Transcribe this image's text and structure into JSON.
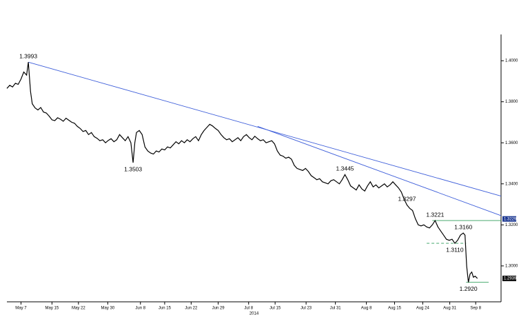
{
  "chart_data": {
    "type": "line",
    "color": "#000000",
    "x": [
      -2.5,
      -2,
      -1.5,
      -1,
      -0.5,
      0,
      0.5,
      1,
      1.3,
      1.7,
      2,
      2.5,
      3,
      3.5,
      4,
      4.5,
      5,
      5.5,
      6,
      6.5,
      7,
      7.5,
      8,
      8.5,
      9,
      9.5,
      10,
      10.5,
      11,
      11.5,
      12,
      12.5,
      13,
      13.5,
      14,
      14.5,
      15,
      15.5,
      16,
      16.5,
      17,
      17.5,
      18,
      18.5,
      19,
      19.5,
      19.9,
      20.2,
      20.5,
      21,
      21.5,
      22,
      22.5,
      23,
      23.5,
      24,
      24.5,
      25,
      25.5,
      26,
      26.5,
      27,
      27.5,
      28,
      28.5,
      29,
      29.5,
      30,
      30.5,
      31,
      31.5,
      32,
      32.5,
      33,
      33.5,
      34,
      34.5,
      35,
      35.5,
      36,
      36.5,
      37,
      37.5,
      38,
      38.5,
      39,
      39.5,
      40,
      40.5,
      41,
      41.5,
      42,
      42.5,
      43,
      43.5,
      44,
      44.5,
      45,
      45.5,
      46,
      46.5,
      47,
      47.5,
      48,
      48.5,
      49,
      49.5,
      50,
      50.5,
      51,
      51.5,
      52,
      52.5,
      53,
      53.5,
      54,
      54.5,
      55,
      55.5,
      56,
      56.5,
      57,
      57.5,
      58,
      58.5,
      59,
      59.5,
      60,
      60.5,
      61,
      61.5,
      62,
      62.5,
      63,
      63.5,
      64,
      64.5,
      65,
      65.5,
      66,
      66.5,
      67,
      67.5,
      68,
      68.5,
      69,
      69.5,
      70,
      70.5,
      71,
      71.5,
      72,
      72.5,
      73,
      73.5,
      74,
      74.5,
      75,
      75.5,
      76,
      76.5,
      77,
      77.5,
      78,
      78.5,
      78.8,
      79.1,
      79.4,
      79.7,
      80,
      80.3,
      80.6,
      81
    ],
    "values": [
      1.3865,
      1.388,
      1.3872,
      1.389,
      1.3885,
      1.391,
      1.3945,
      1.393,
      1.3993,
      1.385,
      1.379,
      1.377,
      1.376,
      1.3772,
      1.375,
      1.3745,
      1.373,
      1.3712,
      1.3708,
      1.3722,
      1.3715,
      1.3705,
      1.372,
      1.371,
      1.37,
      1.3695,
      1.368,
      1.367,
      1.3655,
      1.366,
      1.364,
      1.365,
      1.363,
      1.3622,
      1.361,
      1.3615,
      1.36,
      1.3612,
      1.362,
      1.3605,
      1.3615,
      1.364,
      1.3625,
      1.361,
      1.363,
      1.36,
      1.3503,
      1.36,
      1.365,
      1.366,
      1.364,
      1.358,
      1.356,
      1.355,
      1.3545,
      1.356,
      1.3555,
      1.357,
      1.3565,
      1.358,
      1.3575,
      1.359,
      1.3605,
      1.3595,
      1.361,
      1.36,
      1.3615,
      1.3605,
      1.362,
      1.363,
      1.361,
      1.364,
      1.366,
      1.3675,
      1.369,
      1.3682,
      1.367,
      1.366,
      1.364,
      1.3625,
      1.3615,
      1.362,
      1.3605,
      1.3615,
      1.3625,
      1.361,
      1.363,
      1.364,
      1.3625,
      1.3615,
      1.3632,
      1.362,
      1.361,
      1.3615,
      1.36,
      1.3605,
      1.361,
      1.3595,
      1.356,
      1.354,
      1.3535,
      1.3525,
      1.353,
      1.352,
      1.349,
      1.3475,
      1.347,
      1.3465,
      1.3475,
      1.346,
      1.344,
      1.343,
      1.342,
      1.3425,
      1.341,
      1.3405,
      1.34,
      1.3415,
      1.342,
      1.341,
      1.34,
      1.342,
      1.3445,
      1.342,
      1.339,
      1.338,
      1.337,
      1.3395,
      1.3375,
      1.3365,
      1.339,
      1.341,
      1.3385,
      1.3395,
      1.338,
      1.339,
      1.34,
      1.3385,
      1.3395,
      1.341,
      1.3395,
      1.338,
      1.336,
      1.3325,
      1.3297,
      1.328,
      1.327,
      1.323,
      1.32,
      1.3195,
      1.32,
      1.319,
      1.3185,
      1.32,
      1.3221,
      1.319,
      1.317,
      1.315,
      1.313,
      1.3125,
      1.313,
      1.311,
      1.3125,
      1.315,
      1.316,
      1.315,
      1.3,
      1.292,
      1.296,
      1.297,
      1.2945,
      1.295,
      1.2939
    ],
    "xlim": [
      -2.5,
      85.2
    ],
    "ylim": [
      1.2825,
      1.4128
    ],
    "yticks": [
      {
        "value": 1.3,
        "label": "1.3000"
      },
      {
        "value": 1.32,
        "label": "1.3200"
      },
      {
        "value": 1.34,
        "label": "1.3400"
      },
      {
        "value": 1.36,
        "label": "1.3600"
      },
      {
        "value": 1.38,
        "label": "1.3800"
      },
      {
        "value": 1.4,
        "label": "1.4000"
      }
    ],
    "xticks": [
      {
        "value": 0,
        "label": "May 7"
      },
      {
        "value": 5.5,
        "label": "May 15"
      },
      {
        "value": 10.2,
        "label": "May 22"
      },
      {
        "value": 15.4,
        "label": "May 30"
      },
      {
        "value": 21.2,
        "label": "Jun 8"
      },
      {
        "value": 25.5,
        "label": "Jun 15"
      },
      {
        "value": 30.2,
        "label": "Jun 22"
      },
      {
        "value": 35,
        "label": "Jun 29"
      },
      {
        "value": 40.4,
        "label": "Jul 8"
      },
      {
        "value": 45.1,
        "label": "Jul 15"
      },
      {
        "value": 50.6,
        "label": "Jul 23"
      },
      {
        "value": 55.8,
        "label": "Jul 31"
      },
      {
        "value": 61.3,
        "label": "Aug 8"
      },
      {
        "value": 66.3,
        "label": "Aug 15"
      },
      {
        "value": 71.3,
        "label": "Aug 24"
      },
      {
        "value": 76.1,
        "label": "Aug 31"
      },
      {
        "value": 80.7,
        "label": "Sep 8"
      }
    ],
    "xlabel": "2014",
    "annotations": [
      {
        "label": "1.3993",
        "value": 1.3993,
        "x": 1.3,
        "position": "above"
      },
      {
        "label": "1.3503",
        "value": 1.3503,
        "x": 19.9,
        "position": "below"
      },
      {
        "label": "1.3445",
        "value": 1.3445,
        "x": 57.5,
        "position": "above"
      },
      {
        "label": "1.3297",
        "value": 1.3297,
        "x": 68.5,
        "position": "above"
      },
      {
        "label": "1.3221",
        "value": 1.3221,
        "x": 73.5,
        "position": "above"
      },
      {
        "label": "1.3160",
        "value": 1.316,
        "x": 78.5,
        "position": "above"
      },
      {
        "label": "1.3110",
        "value": 1.311,
        "x": 77,
        "position": "below"
      },
      {
        "label": "1.2920",
        "value": 1.292,
        "x": 79.4,
        "position": "below"
      }
    ],
    "lines": [
      {
        "color": "#3a5bd9",
        "dash": false,
        "x": [
          1.3,
          85.2
        ],
        "y": [
          1.3993,
          1.334
        ]
      },
      {
        "color": "#3a5bd9",
        "dash": false,
        "x": [
          42,
          85.2
        ],
        "y": [
          1.368,
          1.3245
        ]
      },
      {
        "color": "#2e9e5a",
        "dash": false,
        "x": [
          73,
          85.2
        ],
        "y": [
          1.3221,
          1.3221
        ]
      },
      {
        "color": "#2e9e5a",
        "dash": true,
        "x": [
          72,
          79
        ],
        "y": [
          1.311,
          1.311
        ]
      },
      {
        "color": "#2e9e5a",
        "dash": false,
        "x": [
          79,
          83
        ],
        "y": [
          1.292,
          1.292
        ]
      }
    ],
    "price_labels": [
      {
        "value": 1.3229,
        "label": "1.3229",
        "color": "#1f3a93"
      },
      {
        "value": 1.2939,
        "label": "1.2939",
        "color": "#111111"
      }
    ]
  }
}
